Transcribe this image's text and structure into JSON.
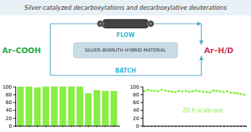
{
  "chart_data": [
    {
      "type": "bar",
      "title": "Silver-catalyzed decarboxylations and decarboxylative deuterations",
      "annotations": [
        {
          "text": "FLOW",
          "color": "#33bbdd"
        },
        {
          "text": "BATCH",
          "color": "#33bbdd"
        },
        {
          "text": "SILVER–BISMUTH HYBRID MATERIAL",
          "color": "#333333"
        },
        {
          "text": "Ar–COOH",
          "color": "#22aa44"
        },
        {
          "text": "Ar–H/D",
          "color": "#cc3355"
        }
      ],
      "categories": [
        null,
        null,
        null,
        null,
        null,
        null,
        null,
        null,
        null,
        null,
        null,
        null
      ],
      "values": [
        100,
        100,
        98,
        100,
        100,
        100,
        100,
        100,
        83,
        91,
        89,
        89
      ],
      "color": "#88ee44",
      "ylim": [
        0,
        100
      ],
      "yticks": [
        0,
        20,
        40,
        60,
        80,
        100
      ],
      "grid": false,
      "tick_labels": "y"
    },
    {
      "type": "line",
      "annotations": [
        {
          "text": "20 h scale-out",
          "color": "#88ee44"
        }
      ],
      "categories": [
        null,
        null,
        null,
        null,
        null,
        null,
        null,
        null,
        null,
        null,
        null,
        null,
        null,
        null,
        null,
        null,
        null,
        null,
        null,
        null,
        null,
        null,
        null,
        null,
        null,
        null,
        null,
        null,
        null,
        null
      ],
      "values": [
        88,
        92,
        90,
        89,
        88,
        92,
        90,
        88,
        87,
        86,
        89,
        88,
        89,
        87,
        88,
        90,
        88,
        87,
        86,
        85,
        90,
        89,
        88,
        86,
        88,
        85,
        84,
        83,
        81,
        79
      ],
      "color": "#88ee44",
      "marker": "circle",
      "line_style": "dashed",
      "ylim": [
        0,
        100
      ],
      "yticks": [
        0,
        20,
        40,
        60,
        80,
        100
      ],
      "grid": false,
      "tick_labels": "y"
    }
  ]
}
